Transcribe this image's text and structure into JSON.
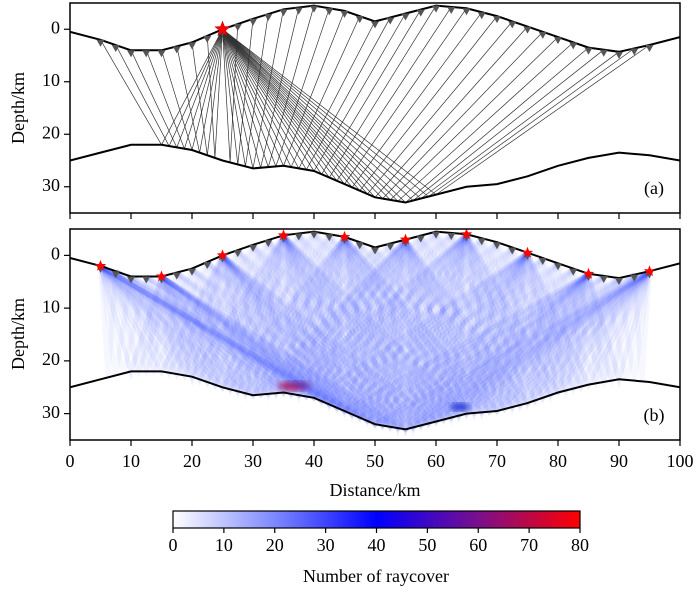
{
  "chart_data": [
    {
      "type": "ray",
      "panel_label": "(a)",
      "ylabel": "Depth/km",
      "xlim": [
        0,
        100
      ],
      "xticks": [
        0,
        10,
        20,
        30,
        40,
        50,
        60,
        70,
        80,
        90,
        100
      ],
      "ylim": [
        -5,
        35
      ],
      "y_inverted": true,
      "yticks": [
        0,
        10,
        20,
        30
      ],
      "x": [
        0,
        5,
        10,
        15,
        20,
        25,
        30,
        35,
        40,
        45,
        50,
        55,
        60,
        65,
        70,
        75,
        80,
        85,
        90,
        95,
        100
      ],
      "interfaces": [
        {
          "color": "#000000",
          "values": [
            0.5,
            2,
            4,
            4,
            2.5,
            0,
            -2,
            -3.8,
            -4.5,
            -3.5,
            -1.5,
            -3,
            -4.5,
            -4,
            -2.5,
            -0.5,
            1.5,
            3.5,
            4.3,
            3,
            1.5
          ]
        },
        {
          "color": "#000000",
          "values": [
            25,
            23.5,
            22,
            22,
            23,
            25,
            26.5,
            26,
            27,
            29.5,
            32,
            33,
            31.5,
            30,
            29.5,
            28,
            26,
            24.5,
            23.5,
            24,
            25
          ]
        }
      ],
      "stations_x": [
        5,
        7.5,
        10,
        12.5,
        15,
        17.5,
        20,
        22.5,
        25,
        27.5,
        30,
        32.5,
        35,
        37.5,
        40,
        42.5,
        45,
        47.5,
        50,
        52.5,
        55,
        57.5,
        60,
        62.5,
        65,
        67.5,
        70,
        72.5,
        75,
        77.5,
        80,
        82.5,
        85,
        87.5,
        90,
        92.5,
        95
      ],
      "station_color": "#555555",
      "sources_x": [
        25
      ],
      "source_color": "#ff0000",
      "ray_color": "#333333"
    },
    {
      "type": "raycover",
      "panel_label": "(b)",
      "ylabel": "Depth/km",
      "xlabel": "Distance/km",
      "xlim": [
        0,
        100
      ],
      "xticks": [
        0,
        10,
        20,
        30,
        40,
        50,
        60,
        70,
        80,
        90,
        100
      ],
      "ylim": [
        -5,
        35
      ],
      "y_inverted": true,
      "yticks": [
        0,
        10,
        20,
        30
      ],
      "x": [
        0,
        5,
        10,
        15,
        20,
        25,
        30,
        35,
        40,
        45,
        50,
        55,
        60,
        65,
        70,
        75,
        80,
        85,
        90,
        95,
        100
      ],
      "interfaces": [
        {
          "color": "#000000",
          "values": [
            0.5,
            2,
            4,
            4,
            2.5,
            0,
            -2,
            -3.8,
            -4.5,
            -3.5,
            -1.5,
            -3,
            -4.5,
            -4,
            -2.5,
            -0.5,
            1.5,
            3.5,
            4.3,
            3,
            1.5
          ]
        },
        {
          "color": "#000000",
          "values": [
            25,
            23.5,
            22,
            22,
            23,
            25,
            26.5,
            26,
            27,
            29.5,
            32,
            33,
            31.5,
            30,
            29.5,
            28,
            26,
            24.5,
            23.5,
            24,
            25
          ]
        }
      ],
      "stations_x": [
        5,
        7.5,
        10,
        12.5,
        15,
        17.5,
        20,
        22.5,
        25,
        27.5,
        30,
        32.5,
        35,
        37.5,
        40,
        42.5,
        45,
        47.5,
        50,
        52.5,
        55,
        57.5,
        60,
        62.5,
        65,
        67.5,
        70,
        72.5,
        75,
        77.5,
        80,
        82.5,
        85,
        87.5,
        90,
        92.5,
        95
      ],
      "station_color": "#555555",
      "sources_x": [
        5,
        15,
        25,
        35,
        45,
        55,
        65,
        75,
        85,
        95
      ],
      "source_color": "#ff0000",
      "ray_color": "#2a3cff",
      "colorbar": {
        "label": "Number of raycover",
        "lim": [
          0,
          80
        ],
        "ticks": [
          0,
          10,
          20,
          30,
          40,
          50,
          60,
          70,
          80
        ],
        "colors": [
          "#ffffff",
          "#7d88ff",
          "#0000ff",
          "#7a0f8c",
          "#ff0000"
        ]
      }
    }
  ]
}
